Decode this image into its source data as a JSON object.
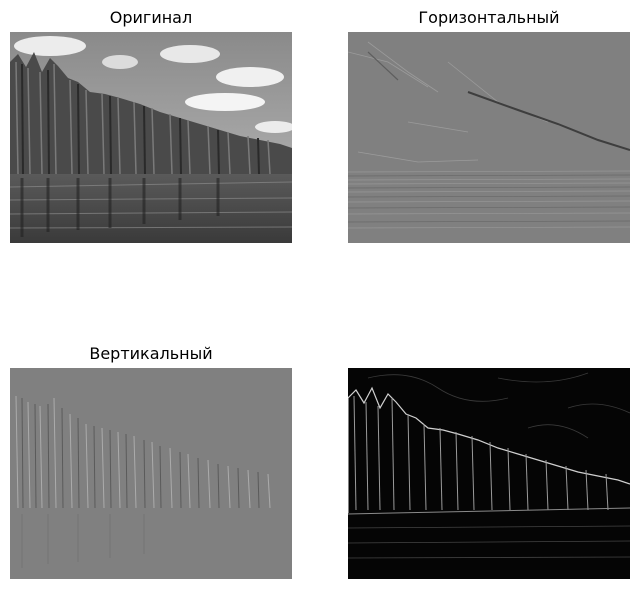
{
  "panels": [
    {
      "title": "Оригинал",
      "content": "original"
    },
    {
      "title": "Горизонтальный",
      "content": "horizontal"
    },
    {
      "title": "Вертикальный",
      "content": "vertical"
    },
    {
      "title": "",
      "content": "magnitude"
    }
  ]
}
